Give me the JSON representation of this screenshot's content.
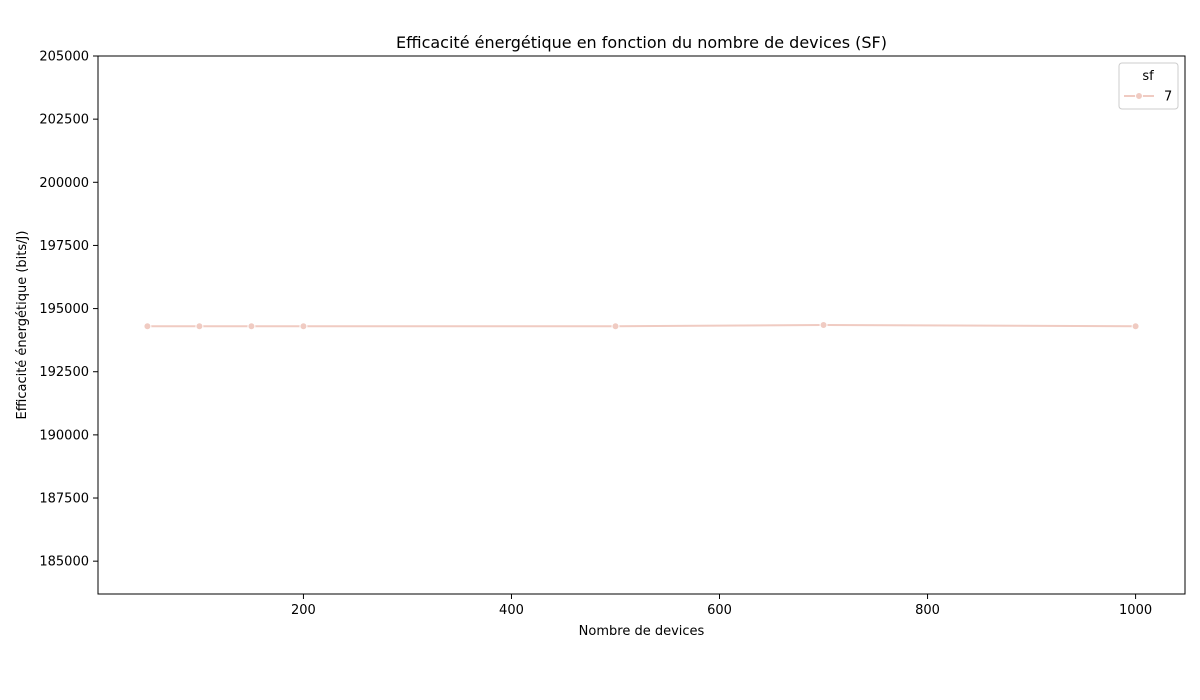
{
  "chart_data": {
    "type": "line",
    "title": "Efficacité énergétique en fonction du nombre de devices (SF)",
    "xlabel": "Nombre de devices",
    "ylabel": "Efficacité énergétique (bits/J)",
    "xlim": [
      2.5,
      1047.5
    ],
    "ylim": [
      183700,
      205000
    ],
    "xticks": [
      200,
      400,
      600,
      800,
      1000
    ],
    "xtick_labels": [
      "200",
      "400",
      "600",
      "800",
      "1000"
    ],
    "yticks": [
      185000,
      187500,
      190000,
      192500,
      195000,
      197500,
      200000,
      202500,
      205000
    ],
    "ytick_labels": [
      "185000",
      "187500",
      "190000",
      "192500",
      "195000",
      "197500",
      "200000",
      "202500",
      "205000"
    ],
    "grid": false,
    "legend": {
      "title": "sf",
      "placement": "top-right",
      "entries": [
        "7"
      ]
    },
    "series": [
      {
        "name": "7",
        "color": "#f0cbc2",
        "x": [
          50,
          100,
          150,
          200,
          500,
          700,
          1000
        ],
        "y": [
          194300,
          194300,
          194300,
          194300,
          194300,
          194350,
          194300
        ]
      }
    ]
  }
}
